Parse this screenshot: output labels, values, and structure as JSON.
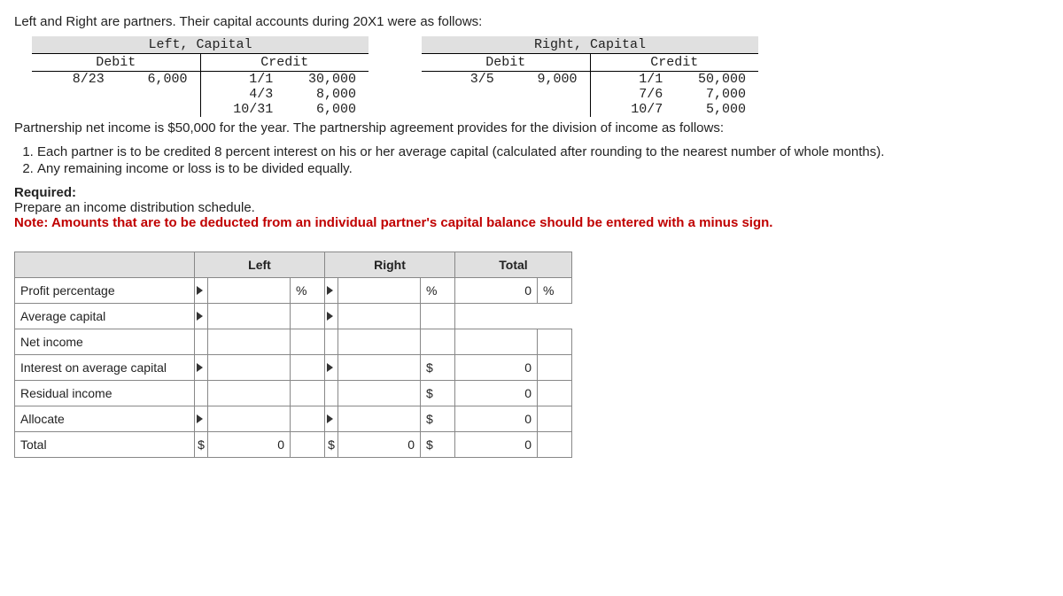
{
  "intro": "Left and Right are partners. Their capital accounts during 20X1 were as follows:",
  "leftAcct": {
    "title": "Left, Capital",
    "debitLabel": "Debit",
    "creditLabel": "Credit",
    "debits": [
      {
        "date": "8/23",
        "amt": "6,000"
      }
    ],
    "credits": [
      {
        "date": "1/1",
        "amt": "30,000"
      },
      {
        "date": "4/3",
        "amt": "8,000"
      },
      {
        "date": "10/31",
        "amt": "6,000"
      }
    ]
  },
  "rightAcct": {
    "title": "Right, Capital",
    "debitLabel": "Debit",
    "creditLabel": "Credit",
    "debits": [
      {
        "date": "3/5",
        "amt": "9,000"
      }
    ],
    "credits": [
      {
        "date": "1/1",
        "amt": "50,000"
      },
      {
        "date": "7/6",
        "amt": "7,000"
      },
      {
        "date": "10/7",
        "amt": "5,000"
      }
    ]
  },
  "incomeNote": "Partnership net income is $50,000 for the year. The partnership agreement provides for the division of income as follows:",
  "rule1": "Each partner is to be credited 8 percent interest on his or her average capital (calculated after rounding to the nearest number of whole months).",
  "rule2": "Any remaining income or loss is to be divided equally.",
  "requiredLabel": "Required:",
  "requiredTask": "Prepare an income distribution schedule.",
  "note": "Note: Amounts that are to be deducted from an individual partner's capital balance should be entered with a minus sign.",
  "sched": {
    "cols": {
      "left": "Left",
      "right": "Right",
      "total": "Total"
    },
    "rows": {
      "profitPct": "Profit percentage",
      "avgCap": "Average capital",
      "netInc": "Net income",
      "intCap": "Interest on average capital",
      "resid": "Residual income",
      "alloc": "Allocate",
      "total": "Total"
    },
    "pctUnit": "%",
    "curUnit": "$",
    "zero": "0",
    "totalPct": "0"
  }
}
